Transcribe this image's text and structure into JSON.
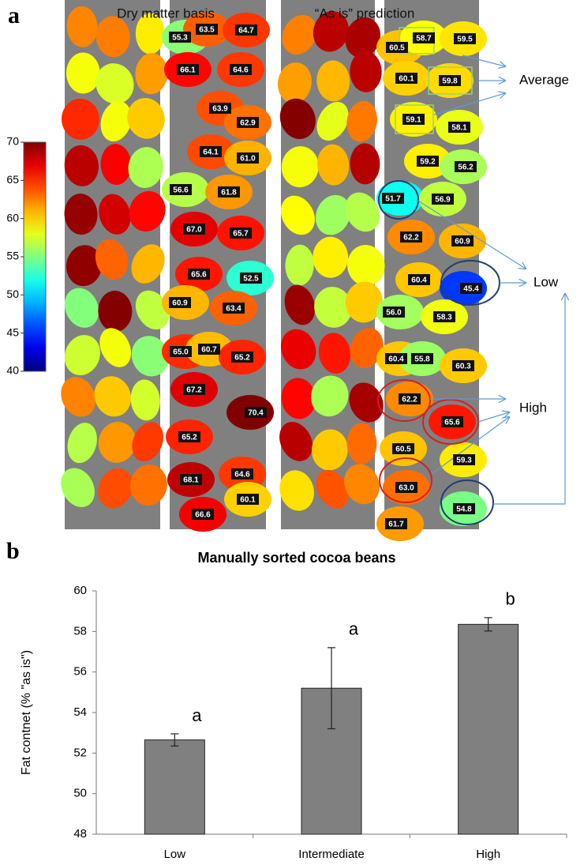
{
  "panel_a": {
    "label": "a",
    "strip_titles": [
      "Dry matter basis",
      "“As is” prediction"
    ],
    "colorbar": {
      "lim": [
        40,
        70
      ],
      "ticks": [
        40,
        45,
        50,
        55,
        60,
        65,
        70
      ]
    },
    "dry_labels": [
      "55.3",
      "63.5",
      "64.7",
      "66.1",
      "64.6",
      "63.9",
      "62.9",
      "64.1",
      "61.0",
      "56.6",
      "61.8",
      "67.0",
      "65.7",
      "65.6",
      "52.5",
      "60.9",
      "63.4",
      "65.0",
      "60.7",
      "65.2",
      "67.2",
      "70.4",
      "65.2",
      "64.6",
      "68.1",
      "60.1",
      "66.6"
    ],
    "asis_labels": [
      "60.5",
      "58.7",
      "59.5",
      "60.1",
      "59.8",
      "59.1",
      "58.1",
      "59.2",
      "56.2",
      "51.7",
      "56.9",
      "62.2",
      "60.9",
      "60.4",
      "45.4",
      "56.0",
      "58.3",
      "60.4",
      "55.8",
      "60.3",
      "62.2",
      "65.6",
      "60.5",
      "59.3",
      "63.0",
      "54.8",
      "61.7"
    ],
    "annotations": [
      "Average",
      "Low",
      "High"
    ]
  },
  "chart_data": {
    "type": "bar",
    "panel_label": "b",
    "title": "Manually sorted cocoa beans",
    "y_label": "Fat contnet (% \"as is\")",
    "categories": [
      "Low",
      "Intermediate",
      "High"
    ],
    "values": [
      52.65,
      55.2,
      58.35
    ],
    "errors": [
      0.3,
      2.0,
      0.33
    ],
    "annotations": [
      "a",
      "a",
      "b"
    ],
    "color": "#808080",
    "ylim": [
      48,
      60
    ],
    "yticks": [
      48,
      50,
      52,
      54,
      56,
      58,
      60
    ]
  }
}
